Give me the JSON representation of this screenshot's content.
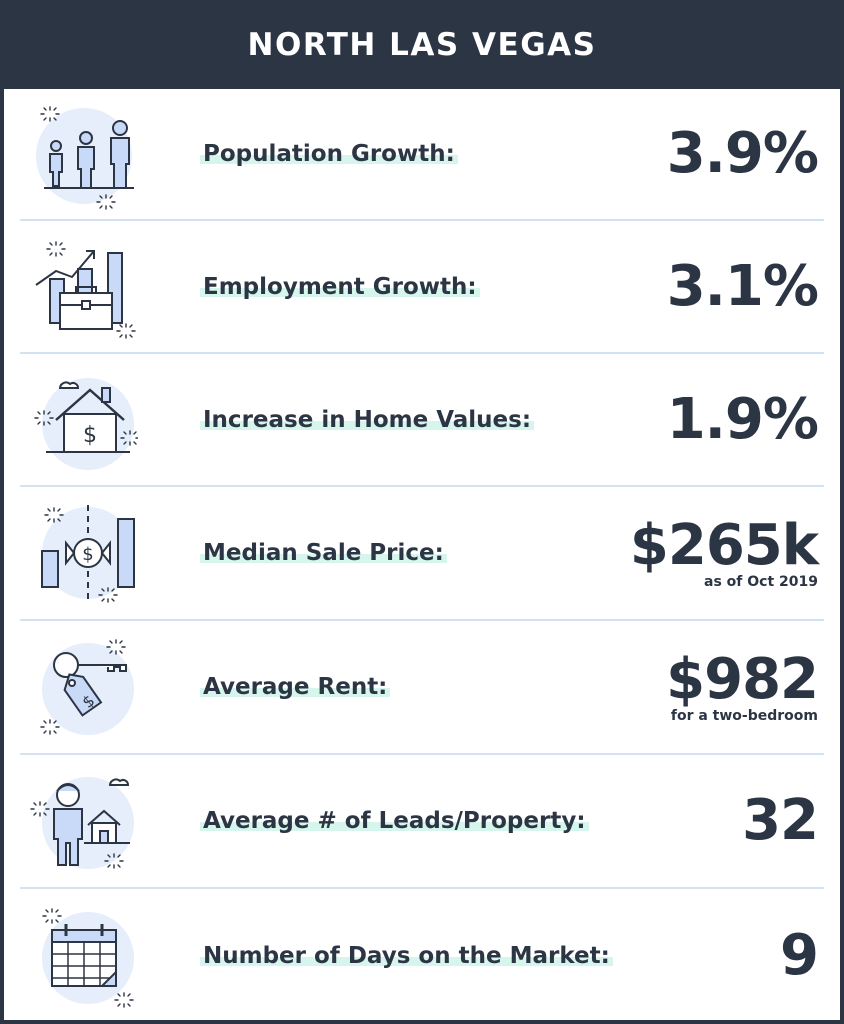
{
  "title": "NORTH LAS VEGAS",
  "rows": [
    {
      "label": "Population Growth:",
      "value": "3.9%",
      "note": "",
      "icon": "people-icon"
    },
    {
      "label": "Employment Growth:",
      "value": "3.1%",
      "note": "",
      "icon": "briefcase-chart-icon"
    },
    {
      "label": "Increase in Home Values:",
      "value": "1.9%",
      "note": "",
      "icon": "house-dollar-icon"
    },
    {
      "label": "Median Sale Price:",
      "value": "$265k",
      "note": "as of Oct 2019",
      "icon": "price-chart-icon"
    },
    {
      "label": "Average Rent:",
      "value": "$982",
      "note": "for a two-bedroom",
      "icon": "key-tag-icon"
    },
    {
      "label": "Average # of Leads/Property:",
      "value": "32",
      "note": "",
      "icon": "person-house-icon"
    },
    {
      "label": "Number of Days on the Market:",
      "value": "9",
      "note": "",
      "icon": "calendar-icon"
    }
  ],
  "colors": {
    "header": "#2c3544",
    "text": "#2c3544",
    "accent_blue": "#c9daf8",
    "highlight": "#d6f5ec",
    "divider": "#d4e3f4"
  }
}
